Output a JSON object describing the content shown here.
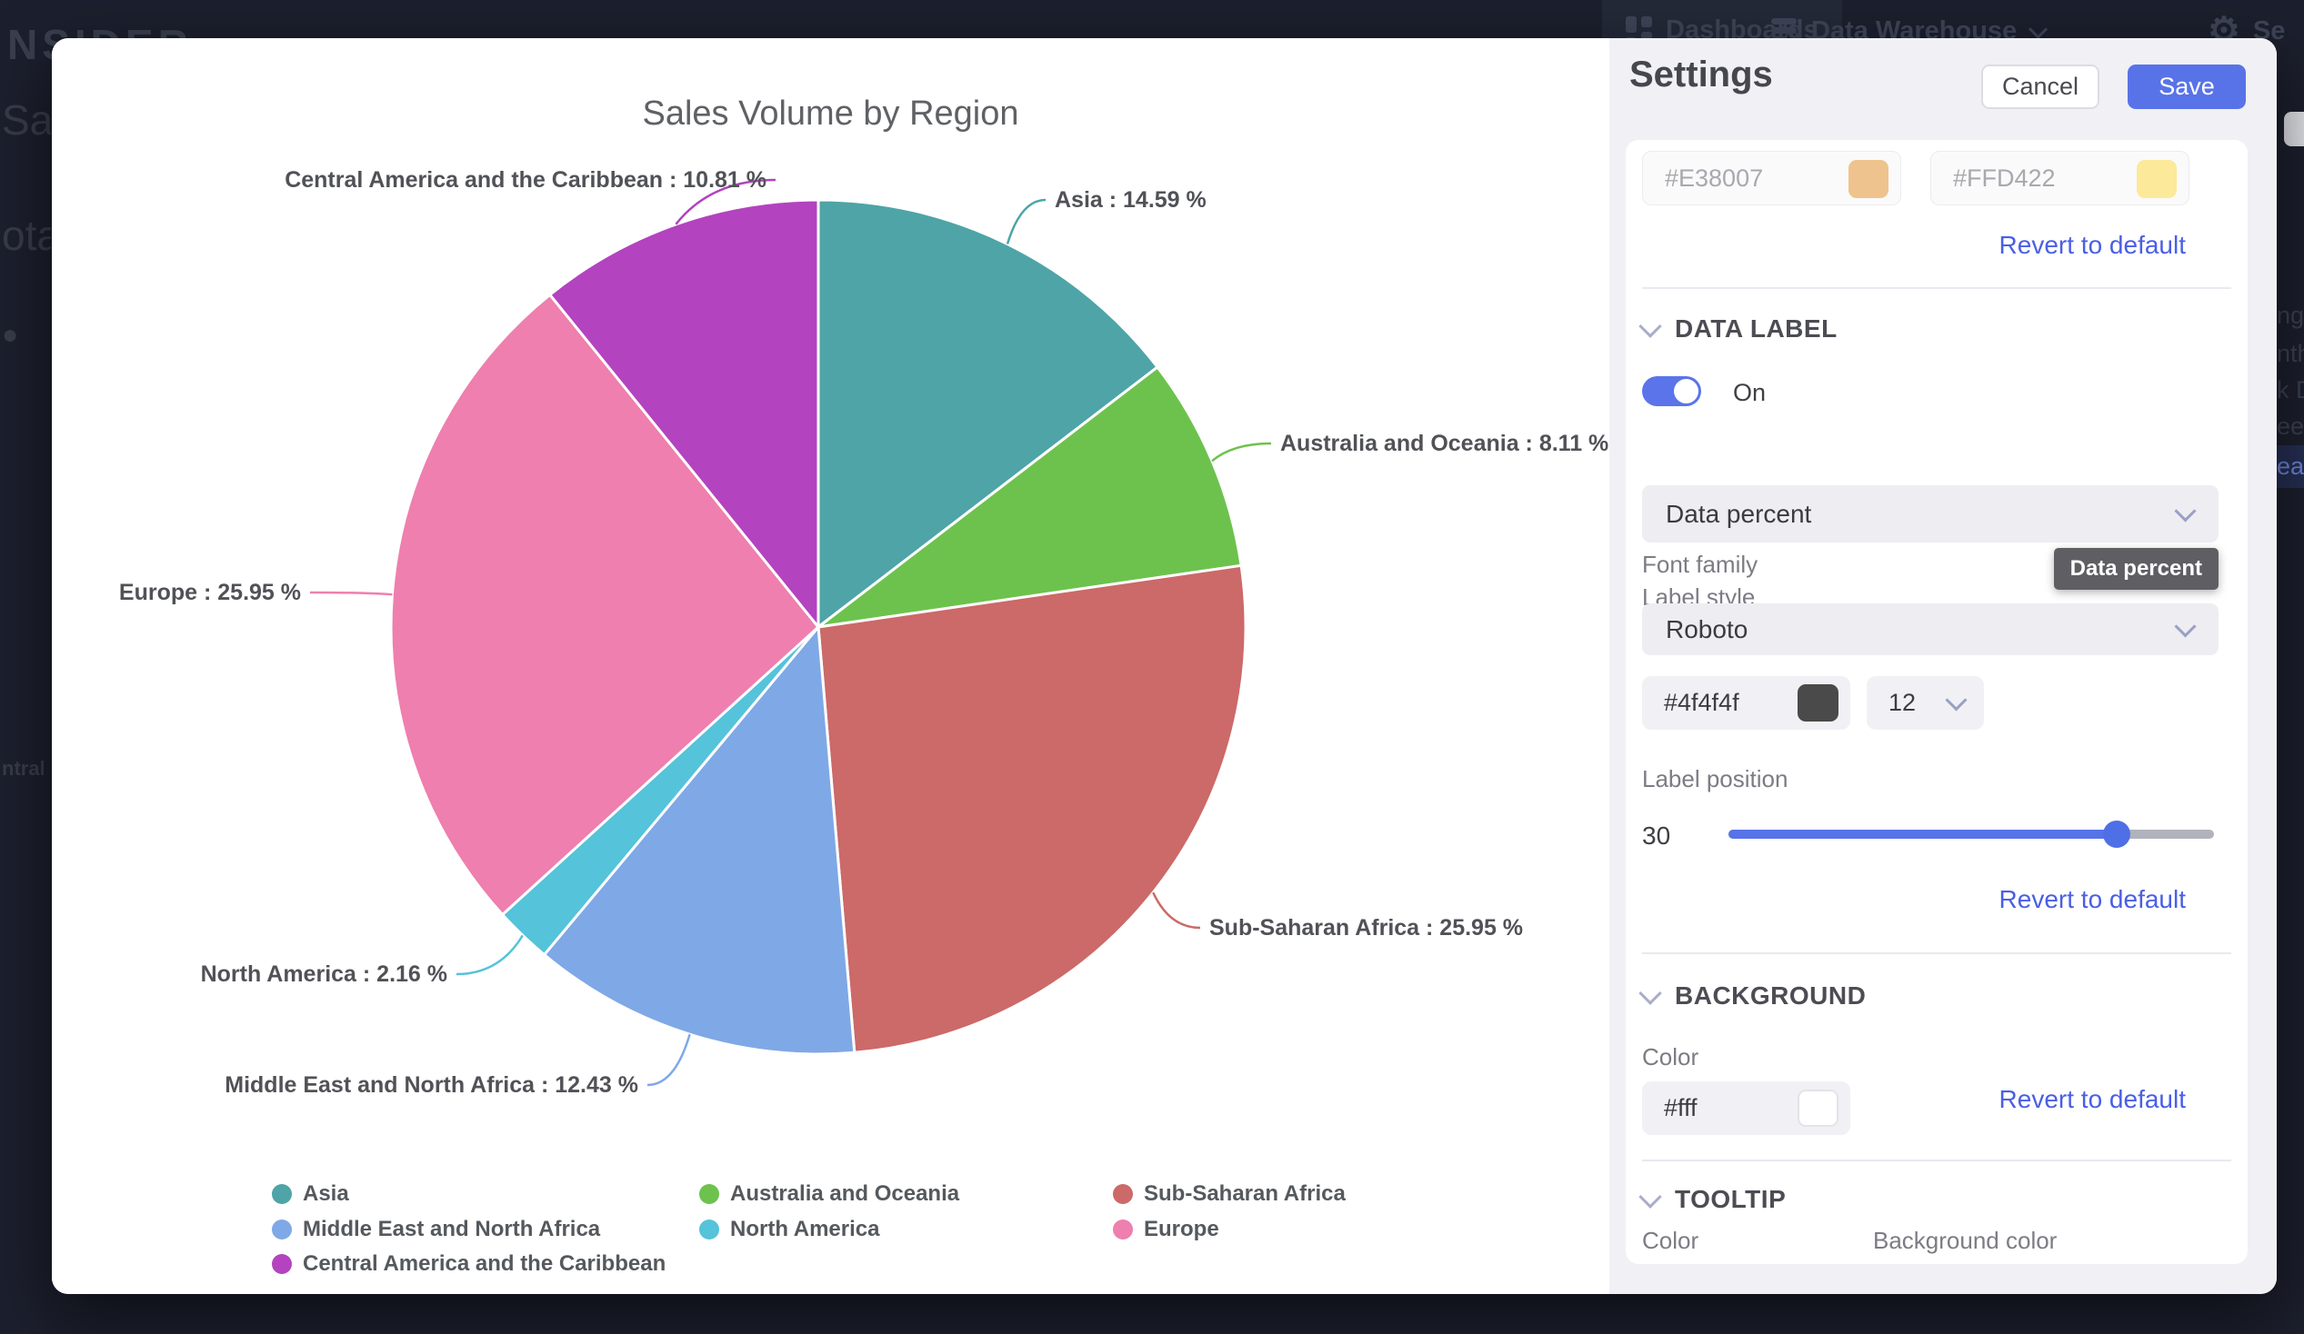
{
  "background_page": {
    "brand": "NSIDER",
    "nav_dashboards": "Dashboards",
    "nav_data_warehouse": "Data Warehouse",
    "nav_settings_partial": "Se",
    "left_fragments": [
      "Sal",
      "ota",
      "●",
      "ntral"
    ],
    "right_fragments": [
      "nge",
      "nth",
      "k D",
      "eek",
      "ear"
    ],
    "right_fragment_selected": "ear"
  },
  "chart_data": {
    "type": "pie",
    "title": "Sales Volume by Region",
    "label_format": "{name} : {value} %",
    "start_angle_deg": 0,
    "direction": "clockwise",
    "legend_position": "bottom",
    "slices": [
      {
        "label": "Asia",
        "value": 14.59,
        "color": "#4ea4a6"
      },
      {
        "label": "Australia and Oceania",
        "value": 8.11,
        "color": "#6dc24d"
      },
      {
        "label": "Sub-Saharan Africa",
        "value": 25.95,
        "color": "#cc6969"
      },
      {
        "label": "Middle East and North Africa",
        "value": 12.43,
        "color": "#7fa8e6"
      },
      {
        "label": "North America",
        "value": 2.16,
        "color": "#55c3d9"
      },
      {
        "label": "Europe",
        "value": 25.95,
        "color": "#ee7fae"
      },
      {
        "label": "Central America and the Caribbean",
        "value": 10.81,
        "color": "#b343bf"
      }
    ],
    "legend_items": [
      "Asia",
      "Australia and Oceania",
      "Sub-Saharan Africa",
      "Middle East and North Africa",
      "North America",
      "Europe",
      "Central America and the Caribbean"
    ]
  },
  "settings": {
    "title": "Settings",
    "cancel_label": "Cancel",
    "save_label": "Save",
    "revert_label": "Revert to default",
    "color_inputs": [
      {
        "value": "#E38007",
        "swatch": "#E38007"
      },
      {
        "value": "#FFD422",
        "swatch": "#FFD422"
      }
    ],
    "sections": {
      "data_label": {
        "heading": "DATA LABEL",
        "toggle_state": "On",
        "label_style": {
          "label": "Label style",
          "value": "Data percent"
        },
        "tooltip": "Data percent",
        "font_family": {
          "label": "Font family",
          "value": "Roboto"
        },
        "font_color": "#4f4f4f",
        "font_color_swatch": "#4a4a4a",
        "font_size": "12",
        "label_position": {
          "label": "Label position",
          "value": "30",
          "percent": 80
        }
      },
      "background": {
        "heading": "BACKGROUND",
        "color_label": "Color",
        "color_value": "#fff",
        "color_swatch": "#ffffff"
      },
      "tooltip": {
        "heading": "TOOLTIP",
        "color_label": "Color",
        "background_color_label": "Background color"
      }
    }
  },
  "colors": {
    "accent_blue": "#5673e8",
    "link_blue": "#4a5fe4",
    "save_button": "#5873e8",
    "toggle_on": "#5b74ea",
    "tooltip_bg": "#5f5f63",
    "panel_bg": "#f0f0f5",
    "card_bg": "#ffffff",
    "page_bg": "#1c1f2d"
  }
}
